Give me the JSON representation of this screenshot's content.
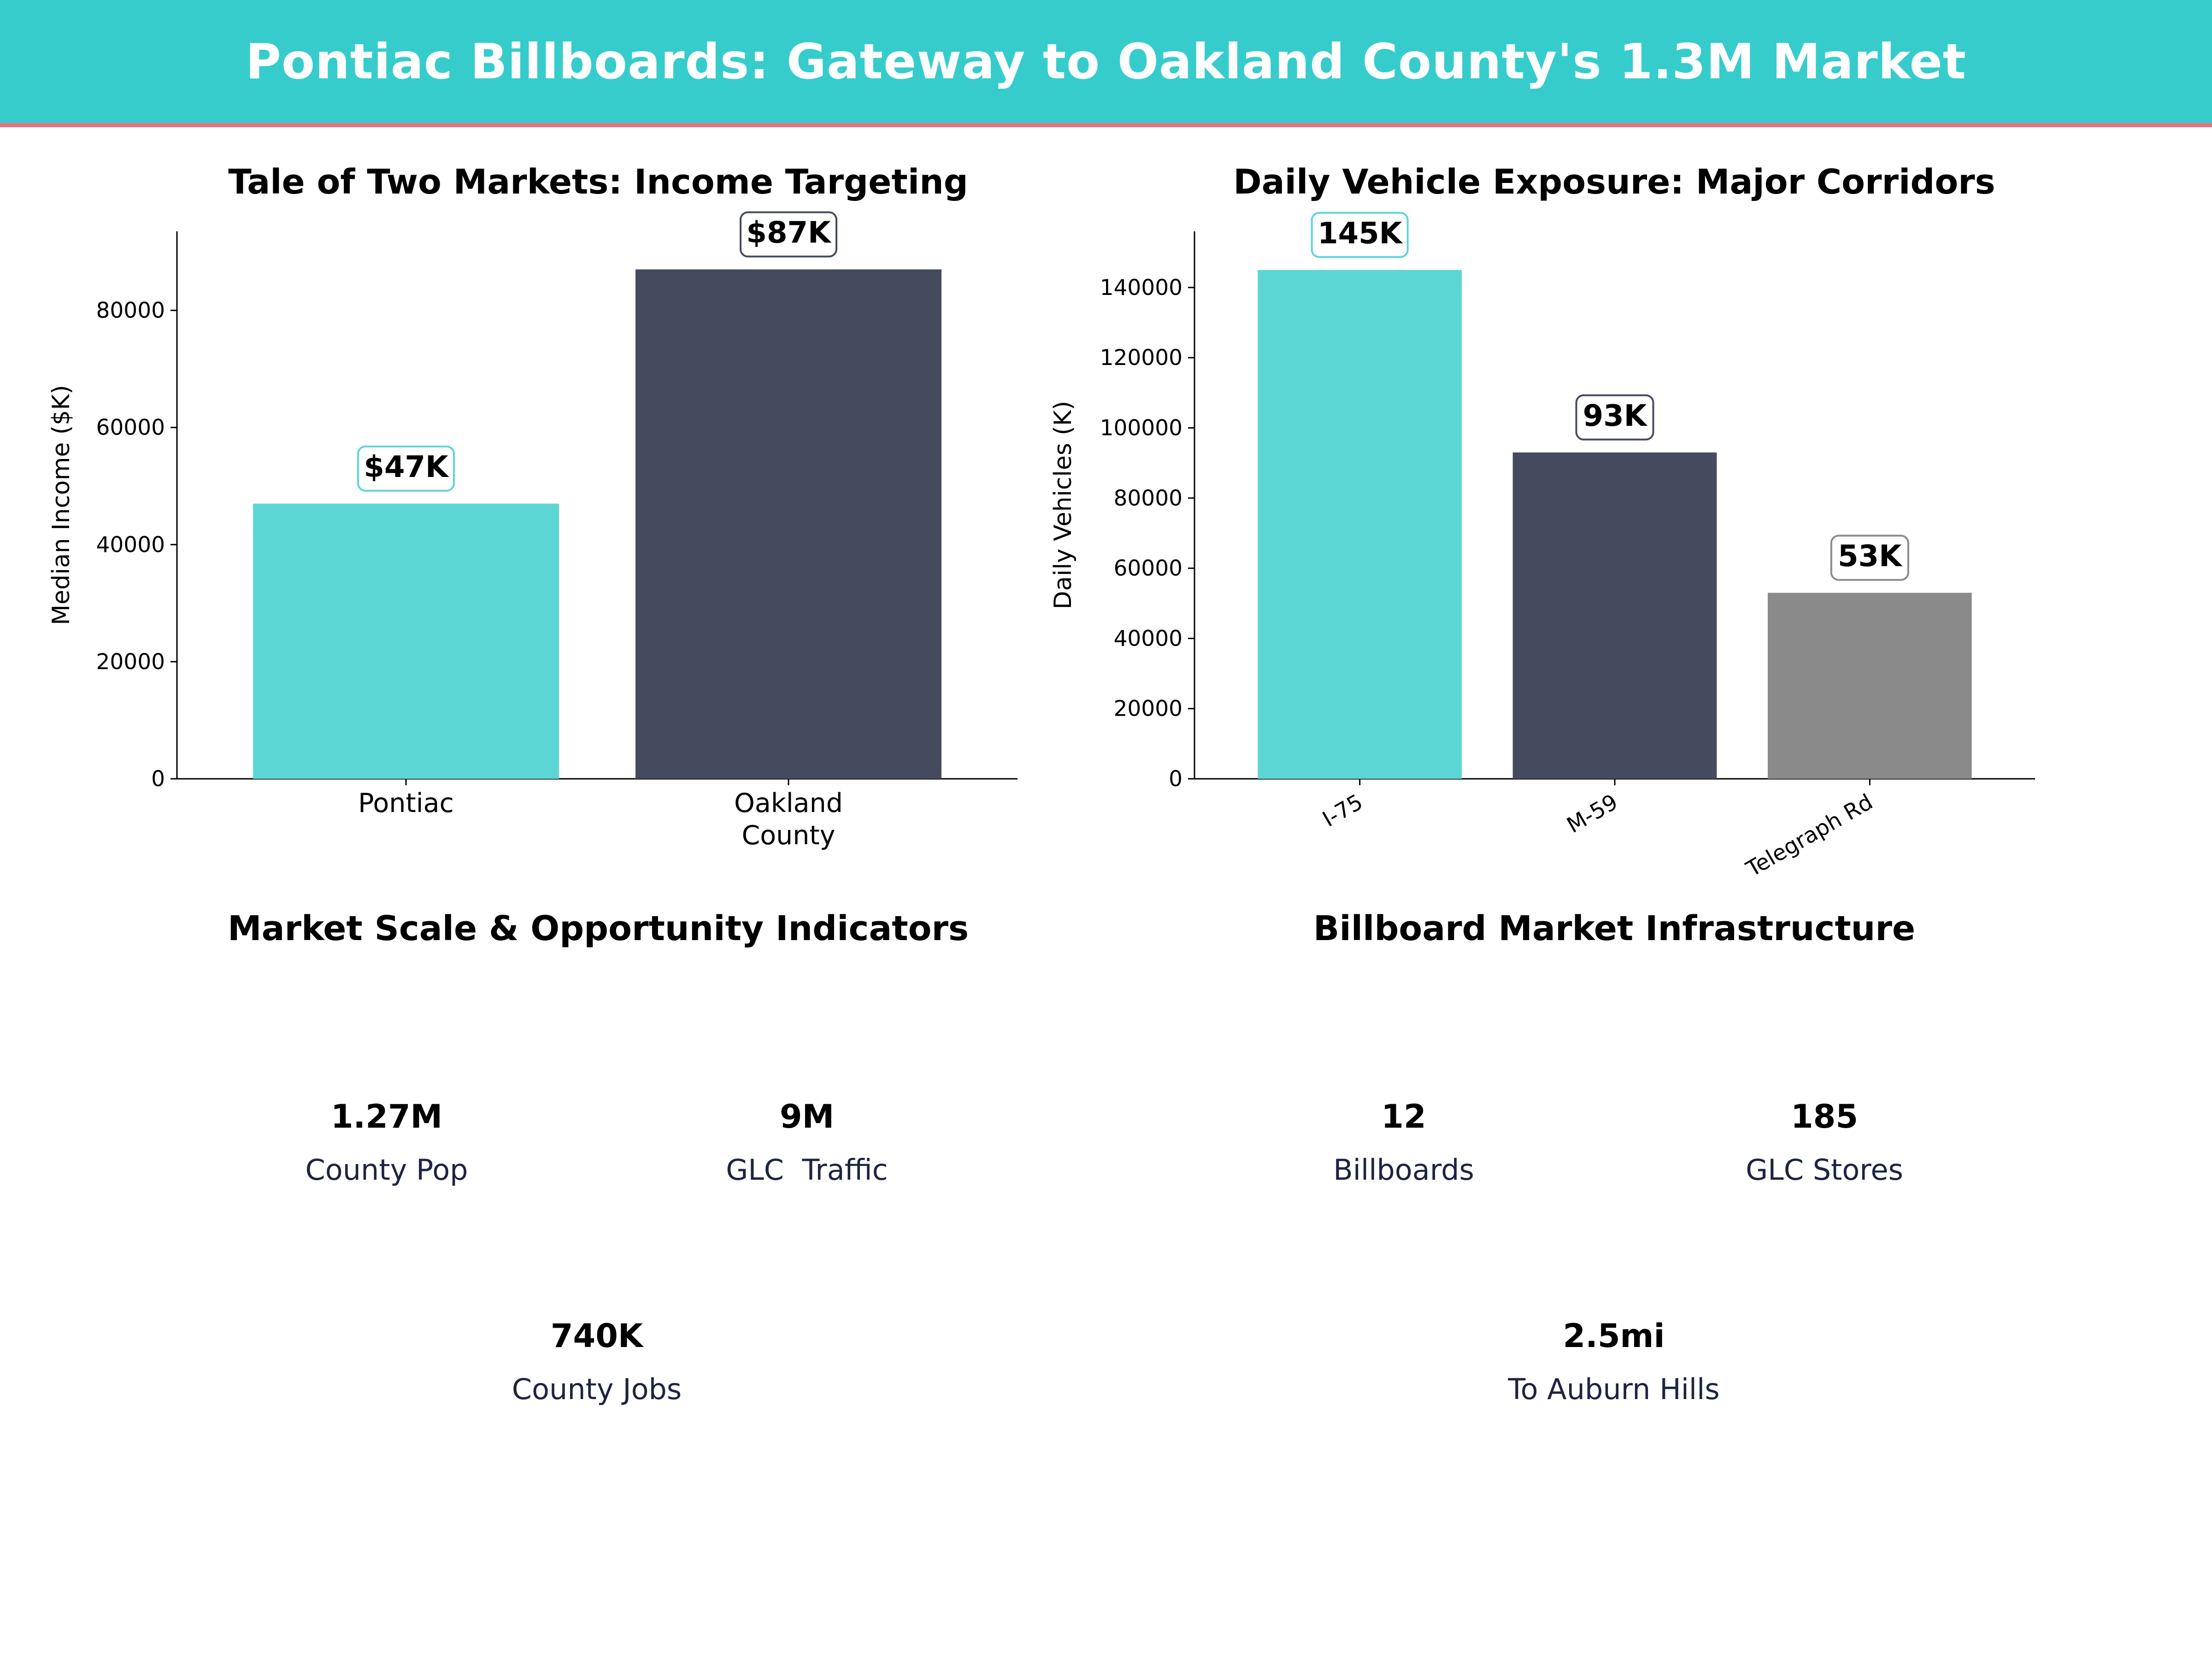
{
  "header": {
    "title": "Pontiac Billboards: Gateway to Oakland County's 1.3M Market"
  },
  "colors": {
    "teal": "#5cd6d4",
    "navy": "#464a5f",
    "grey": "#8a8a8a",
    "header_bg": "#36cccc",
    "accent_line": "#e8717d"
  },
  "chart_data": [
    {
      "type": "bar",
      "title": "Tale of Two Markets: Income Targeting",
      "categories": [
        "Pontiac",
        "Oakland\nCounty"
      ],
      "values": [
        47000,
        87000
      ],
      "data_labels": [
        "$47K",
        "$87K"
      ],
      "bar_colors": [
        "teal",
        "navy"
      ],
      "xlabel": "",
      "ylabel": "Median Income ($K)",
      "ylim": [
        0,
        93500
      ],
      "yticks": [
        0,
        20000,
        40000,
        60000,
        80000
      ],
      "grid": false
    },
    {
      "type": "bar",
      "title": "Daily Vehicle Exposure: Major Corridors",
      "categories": [
        "I-75",
        "M-59",
        "Telegraph Rd"
      ],
      "values": [
        145000,
        93000,
        53000
      ],
      "data_labels": [
        "145K",
        "93K",
        "53K"
      ],
      "bar_colors": [
        "teal",
        "navy",
        "grey"
      ],
      "xlabel": "",
      "ylabel": "Daily Vehicles (K)",
      "ylim": [
        0,
        156000
      ],
      "yticks": [
        0,
        20000,
        40000,
        60000,
        80000,
        100000,
        120000,
        140000
      ],
      "grid": false
    }
  ],
  "indicators": {
    "title": "Market Scale & Opportunity Indicators",
    "cards": [
      {
        "value": "1.27M",
        "label": "County Pop",
        "style": "teal"
      },
      {
        "value": "9M",
        "label": "GLC  Traffic",
        "style": "navy"
      },
      {
        "value": "740K",
        "label": "County Jobs",
        "style": "grey"
      }
    ]
  },
  "infrastructure": {
    "title": "Billboard Market Infrastructure",
    "cards": [
      {
        "value": "12",
        "label": "Billboards",
        "style": "teal"
      },
      {
        "value": "185",
        "label": "GLC Stores",
        "style": "navy"
      },
      {
        "value": "2.5mi",
        "label": "To Auburn Hills",
        "style": "grey"
      }
    ]
  }
}
